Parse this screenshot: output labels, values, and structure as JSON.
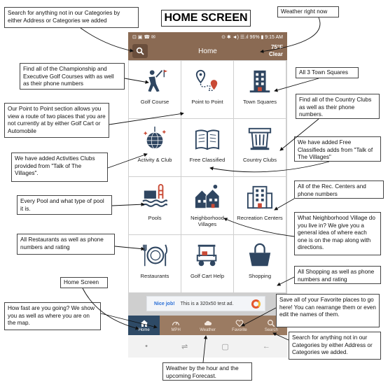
{
  "page_title": "HOME SCREEN",
  "status_bar": {
    "left": "⊡ ▣ ☎ ✉",
    "right": "⊙ ✱ ◄) ☰.ıl 96% ▮ 9:15 AM"
  },
  "app_bar": {
    "title": "Home",
    "temperature": "75°F",
    "condition": "Clear"
  },
  "tiles": [
    {
      "label": "Golf Course",
      "icon": "golfer-icon"
    },
    {
      "label": "Point to Point",
      "icon": "route-icon"
    },
    {
      "label": "Town Squares",
      "icon": "building-icon"
    },
    {
      "label": "Activity & Club",
      "icon": "disco-ball-icon"
    },
    {
      "label": "Free Classified",
      "icon": "book-icon"
    },
    {
      "label": "Country Clubs",
      "icon": "pillar-icon"
    },
    {
      "label": "Pools",
      "icon": "pool-icon"
    },
    {
      "label": "Neighborhood Villages",
      "icon": "village-icon"
    },
    {
      "label": "Recreation Centers",
      "icon": "rec-center-icon"
    },
    {
      "label": "Restaurants",
      "icon": "plate-icon"
    },
    {
      "label": "Golf Cart Help",
      "icon": "golf-cart-icon"
    },
    {
      "label": "Shopping",
      "icon": "shopping-bag-icon"
    }
  ],
  "ad": {
    "nice": "Nice job!",
    "text": "This is a 320x50 test ad."
  },
  "tabs": [
    {
      "label": "Home",
      "icon": "home-icon"
    },
    {
      "label": "MPH",
      "icon": "speedometer-icon"
    },
    {
      "label": "Weather",
      "icon": "cloud-icon"
    },
    {
      "label": "Favorite",
      "icon": "heart-icon"
    },
    {
      "label": "Search",
      "icon": "search-icon"
    }
  ],
  "android_nav": {
    "dot": "•",
    "recent": "⇌",
    "home": "▢",
    "back": "←"
  },
  "notes": {
    "search_top": "Search for anything not in our Categories by either Address or Categories we added",
    "weather_now": "Weather right now",
    "golf": "Find all of the Championship and Executive Golf Courses with as well as their phone numbers",
    "town": "All 3 Town Squares",
    "point": "Our Point to Point section allows you view a route of two places that you are not currently at by either Golf Cart or Automobile",
    "country": "Find all of the Country Clubs as well as their phone numbers.",
    "classified": "We have added Free Classifieds adds from \"Talk of The Villages\"",
    "activities": "We have added Activities Clubs provided from \"Talk of The Villages\".",
    "rec": "All of the Rec. Centers and phone numbers",
    "pool": "Every Pool and what type of pool it is.",
    "village": "What Neighborhood Village do you live in? We give you a general idea of where each one is on the map along with directions.",
    "restaurants": "All Restaurants as well as phone numbers and rating",
    "shopping": "All Shopping as well as phone numbers and rating",
    "home": "Home Screen",
    "mph": "How fast are you going? We show you as well as where you are on the map.",
    "favorite": "Save all of your Favorite places to go here! You can rearrange them or even edit the names of them.",
    "search_bottom": "Search for anything not in our Categories by either Address or Categories we added.",
    "weather_forecast": "Weather by the hour and the upcoming Forecast."
  },
  "colors": {
    "brown": "#8a6a53",
    "tab_brown": "#9b7b62",
    "active_tab": "#2e4a66",
    "icon_navy": "#2f4661",
    "icon_red": "#c94a35"
  }
}
